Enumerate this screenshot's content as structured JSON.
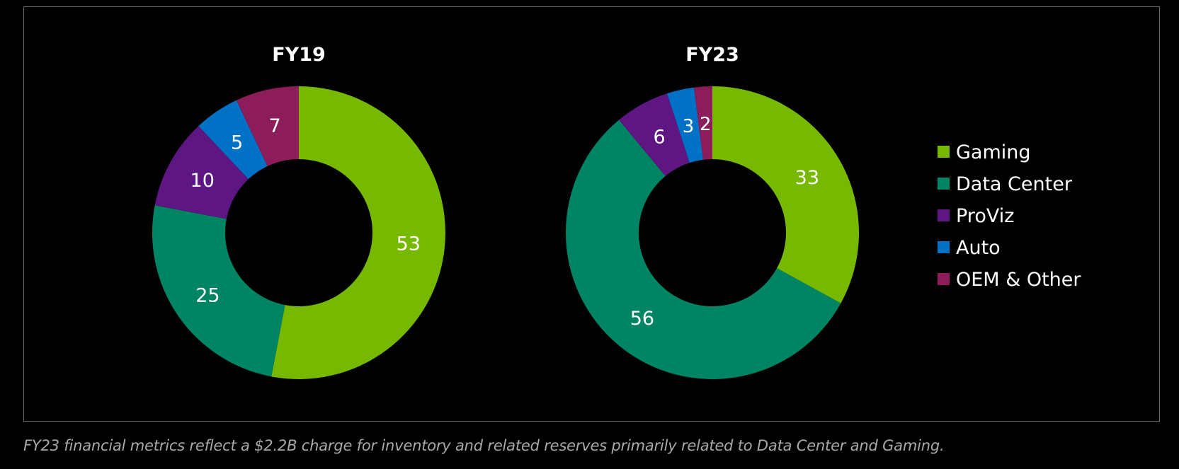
{
  "chart_data": [
    {
      "type": "pie",
      "title": "FY19",
      "categories": [
        "Gaming",
        "Data Center",
        "ProViz",
        "Auto",
        "OEM & Other"
      ],
      "values": [
        53,
        25,
        10,
        5,
        7
      ]
    },
    {
      "type": "pie",
      "title": "FY23",
      "categories": [
        "Gaming",
        "Data Center",
        "ProViz",
        "Auto",
        "OEM & Other"
      ],
      "values": [
        33,
        56,
        6,
        3,
        2
      ]
    }
  ],
  "legend": {
    "placement": "right",
    "items": [
      {
        "label": "Gaming",
        "color": "#76b900"
      },
      {
        "label": "Data Center",
        "color": "#008564"
      },
      {
        "label": "ProViz",
        "color": "#5d1682"
      },
      {
        "label": "Auto",
        "color": "#0071c5"
      },
      {
        "label": "OEM & Other",
        "color": "#8c1c5a"
      }
    ]
  },
  "footnote": "FY23 financial metrics reflect a $2.2B charge for inventory and related reserves primarily related to Data Center and Gaming."
}
